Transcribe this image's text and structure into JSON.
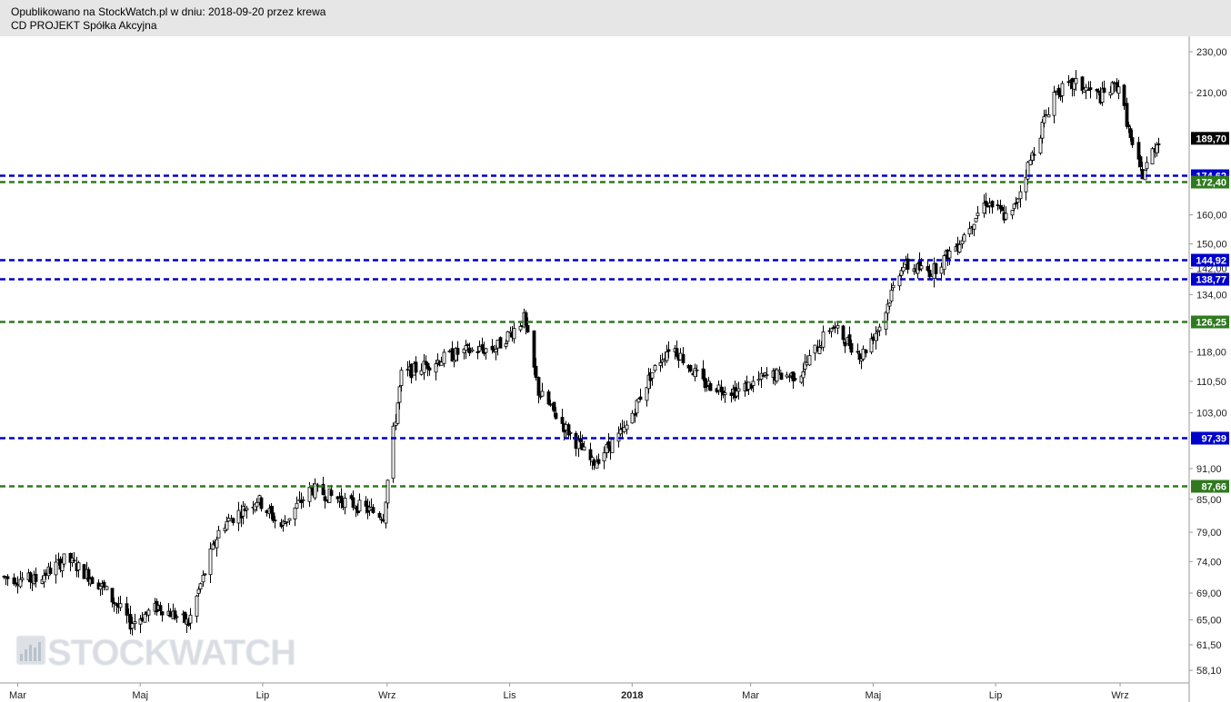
{
  "header": {
    "line1": "Opublikowano na StockWatch.pl w dniu: 2018-09-20 przez krewa",
    "line2": "CD PROJEKT Spółka Akcyjna"
  },
  "watermark": {
    "text": "STOCKWATCH",
    "icon": "bar-chart-icon"
  },
  "colors": {
    "candle": "#000000",
    "blue_level": "#0000cc",
    "green_level": "#2f7a1e",
    "current_price_label": "#000000",
    "header_bg": "#e6e6e6"
  },
  "chart_data": {
    "type": "candlestick",
    "y_scale": "log",
    "ylim": [
      56.5,
      238
    ],
    "y_ticks": [
      "230,00",
      "210,00",
      "160,00",
      "150,00",
      "142,00",
      "134,00",
      "118,00",
      "110,50",
      "103,00",
      "91,00",
      "85,00",
      "79,00",
      "74,00",
      "69,00",
      "65,00",
      "61,50",
      "58,10"
    ],
    "x_ticks": [
      {
        "label": "Mar",
        "date": "2017-03-01",
        "bold": false
      },
      {
        "label": "Maj",
        "date": "2017-05-01",
        "bold": false
      },
      {
        "label": "Lip",
        "date": "2017-07-01",
        "bold": false
      },
      {
        "label": "Wrz",
        "date": "2017-09-01",
        "bold": false
      },
      {
        "label": "Lis",
        "date": "2017-11-01",
        "bold": false
      },
      {
        "label": "2018",
        "date": "2018-01-01",
        "bold": true
      },
      {
        "label": "Mar",
        "date": "2018-03-01",
        "bold": false
      },
      {
        "label": "Maj",
        "date": "2018-05-01",
        "bold": false
      },
      {
        "label": "Lip",
        "date": "2018-07-01",
        "bold": false
      },
      {
        "label": "Wrz",
        "date": "2018-09-01",
        "bold": false
      }
    ],
    "date_range": [
      "2017-02-22",
      "2018-09-20"
    ],
    "current_price": {
      "value": 189.7,
      "label": "189,70"
    },
    "levels": [
      {
        "value": 174.62,
        "label": "174,62",
        "color": "blue"
      },
      {
        "value": 172.4,
        "label": "172,40",
        "color": "green"
      },
      {
        "value": 144.92,
        "label": "144,92",
        "color": "blue"
      },
      {
        "value": 138.77,
        "label": "138,77",
        "color": "blue"
      },
      {
        "value": 126.25,
        "label": "126,25",
        "color": "green"
      },
      {
        "value": 97.39,
        "label": "97,39",
        "color": "blue"
      },
      {
        "value": 87.66,
        "label": "87,66",
        "color": "green"
      }
    ],
    "price_path": [
      [
        "2017-02-22",
        71.5
      ],
      [
        "2017-03-10",
        71.0
      ],
      [
        "2017-03-25",
        74.5
      ],
      [
        "2017-04-12",
        70.0
      ],
      [
        "2017-04-26",
        64.5
      ],
      [
        "2017-05-10",
        67.0
      ],
      [
        "2017-05-25",
        64.5
      ],
      [
        "2017-06-10",
        80.0
      ],
      [
        "2017-06-28",
        85.0
      ],
      [
        "2017-07-10",
        80.0
      ],
      [
        "2017-07-25",
        87.0
      ],
      [
        "2017-08-15",
        84.0
      ],
      [
        "2017-08-30",
        82.0
      ],
      [
        "2017-09-08",
        112.0
      ],
      [
        "2017-09-22",
        115.0
      ],
      [
        "2017-10-08",
        118.0
      ],
      [
        "2017-10-25",
        119.0
      ],
      [
        "2017-11-08",
        127.0
      ],
      [
        "2017-11-15",
        108.0
      ],
      [
        "2017-11-28",
        100.0
      ],
      [
        "2017-12-12",
        92.0
      ],
      [
        "2017-12-28",
        99.0
      ],
      [
        "2018-01-10",
        112.0
      ],
      [
        "2018-01-20",
        120.0
      ],
      [
        "2018-02-05",
        110.0
      ],
      [
        "2018-02-22",
        108.0
      ],
      [
        "2018-03-10",
        112.0
      ],
      [
        "2018-03-25",
        112.0
      ],
      [
        "2018-04-10",
        125.0
      ],
      [
        "2018-04-25",
        117.0
      ],
      [
        "2018-05-05",
        126.0
      ],
      [
        "2018-05-15",
        143.0
      ],
      [
        "2018-05-30",
        141.0
      ],
      [
        "2018-06-12",
        150.0
      ],
      [
        "2018-06-26",
        165.0
      ],
      [
        "2018-07-08",
        158.0
      ],
      [
        "2018-07-20",
        185.0
      ],
      [
        "2018-07-30",
        210.0
      ],
      [
        "2018-08-10",
        214.0
      ],
      [
        "2018-08-22",
        208.0
      ],
      [
        "2018-08-31",
        214.0
      ],
      [
        "2018-09-07",
        185.0
      ],
      [
        "2018-09-12",
        175.0
      ],
      [
        "2018-09-20",
        189.7
      ]
    ]
  }
}
